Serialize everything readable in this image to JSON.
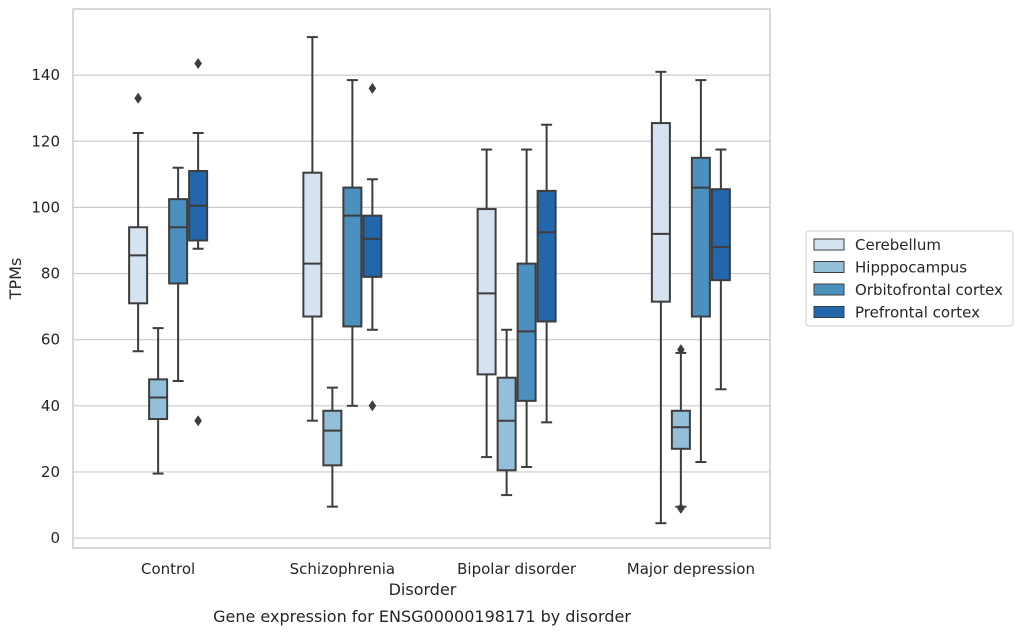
{
  "chart_data": {
    "type": "box",
    "caption": "Gene expression for ENSG00000198171 by disorder",
    "xlabel": "Disorder",
    "ylabel": "TPMs",
    "ylim": [
      -3,
      160
    ],
    "yticks": [
      0,
      20,
      40,
      60,
      80,
      100,
      120,
      140
    ],
    "grid": "horizontal",
    "legend_position": "right",
    "categories": [
      "Control",
      "Schizophrenia",
      "Bipolar disorder",
      "Major depression"
    ],
    "series": [
      {
        "name": "Cerebellum",
        "color": "#d5e3f1",
        "boxes": [
          {
            "whislo": 56.5,
            "q1": 71,
            "med": 85.5,
            "q3": 94,
            "whishi": 122.5,
            "fliers": [
              133
            ]
          },
          {
            "whislo": 35.5,
            "q1": 67,
            "med": 83,
            "q3": 110.5,
            "whishi": 151.5,
            "fliers": []
          },
          {
            "whislo": 24.5,
            "q1": 49.5,
            "med": 74,
            "q3": 99.5,
            "whishi": 117.5,
            "fliers": []
          },
          {
            "whislo": 4.5,
            "q1": 71.5,
            "med": 92,
            "q3": 125.5,
            "whishi": 141,
            "fliers": []
          }
        ]
      },
      {
        "name": "Hipppocampus",
        "color": "#94bfd9",
        "boxes": [
          {
            "whislo": 19.5,
            "q1": 36,
            "med": 42.5,
            "q3": 48,
            "whishi": 63.5,
            "fliers": []
          },
          {
            "whislo": 9.5,
            "q1": 22,
            "med": 32.5,
            "q3": 38.5,
            "whishi": 45.5,
            "fliers": []
          },
          {
            "whislo": 13,
            "q1": 20.5,
            "med": 35.5,
            "q3": 48.5,
            "whishi": 63,
            "fliers": []
          },
          {
            "whislo": 9.5,
            "q1": 27,
            "med": 33.5,
            "q3": 38.5,
            "whishi": 56,
            "fliers": [
              9,
              57
            ]
          }
        ]
      },
      {
        "name": "Orbitofrontal cortex",
        "color": "#4c90c0",
        "boxes": [
          {
            "whislo": 47.5,
            "q1": 77,
            "med": 94,
            "q3": 102.5,
            "whishi": 112,
            "fliers": []
          },
          {
            "whislo": 40,
            "q1": 64,
            "med": 97.5,
            "q3": 106,
            "whishi": 138.5,
            "fliers": []
          },
          {
            "whislo": 21.5,
            "q1": 41.5,
            "med": 62.5,
            "q3": 83,
            "whishi": 117.5,
            "fliers": []
          },
          {
            "whislo": 23,
            "q1": 67,
            "med": 106,
            "q3": 115,
            "whishi": 138.5,
            "fliers": []
          }
        ]
      },
      {
        "name": "Prefrontal cortex",
        "color": "#2266ac",
        "boxes": [
          {
            "whislo": 87.5,
            "q1": 90,
            "med": 100.5,
            "q3": 111,
            "whishi": 122.5,
            "fliers": [
              143.5,
              35.5
            ]
          },
          {
            "whislo": 63,
            "q1": 79,
            "med": 90.5,
            "q3": 97.5,
            "whishi": 108.5,
            "fliers": [
              136,
              40
            ]
          },
          {
            "whislo": 35,
            "q1": 65.5,
            "med": 92.5,
            "q3": 105,
            "whishi": 125,
            "fliers": []
          },
          {
            "whislo": 45,
            "q1": 78,
            "med": 88,
            "q3": 105.5,
            "whishi": 117.5,
            "fliers": []
          }
        ]
      }
    ]
  }
}
